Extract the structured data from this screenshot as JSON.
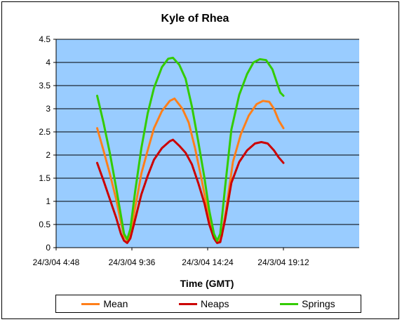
{
  "chart_data": {
    "type": "line",
    "title": "Kyle of Rhea",
    "xlabel": "Time (GMT)",
    "ylabel": "",
    "ylim": [
      0,
      4.5
    ],
    "yticks": [
      "0",
      "0.5",
      "1",
      "1.5",
      "2",
      "2.5",
      "3",
      "3.5",
      "4",
      "4.5"
    ],
    "xlim_hours": [
      4.8,
      24.0
    ],
    "xticks": [
      {
        "label": "24/3/04 4:48",
        "hour": 4.8
      },
      {
        "label": "24/3/04 9:36",
        "hour": 9.6
      },
      {
        "label": "24/3/04 14:24",
        "hour": 14.4
      },
      {
        "label": "24/3/04 19:12",
        "hour": 19.2
      }
    ],
    "plot_background": "#99ccff",
    "grid": "horizontal",
    "legend_position": "bottom",
    "series": [
      {
        "name": "Mean",
        "color": "#ff7f1a",
        "points": [
          [
            7.4,
            2.58
          ],
          [
            7.8,
            2.1
          ],
          [
            8.2,
            1.6
          ],
          [
            8.6,
            1.05
          ],
          [
            8.9,
            0.55
          ],
          [
            9.1,
            0.25
          ],
          [
            9.3,
            0.15
          ],
          [
            9.5,
            0.28
          ],
          [
            9.8,
            0.85
          ],
          [
            10.2,
            1.6
          ],
          [
            10.6,
            2.1
          ],
          [
            11.0,
            2.58
          ],
          [
            11.5,
            2.95
          ],
          [
            12.0,
            3.17
          ],
          [
            12.3,
            3.22
          ],
          [
            12.8,
            3.0
          ],
          [
            13.2,
            2.7
          ],
          [
            13.6,
            2.15
          ],
          [
            14.0,
            1.5
          ],
          [
            14.4,
            0.8
          ],
          [
            14.7,
            0.35
          ],
          [
            14.9,
            0.18
          ],
          [
            15.1,
            0.12
          ],
          [
            15.3,
            0.25
          ],
          [
            15.6,
            0.9
          ],
          [
            16.0,
            1.85
          ],
          [
            16.5,
            2.45
          ],
          [
            17.0,
            2.85
          ],
          [
            17.5,
            3.1
          ],
          [
            17.9,
            3.17
          ],
          [
            18.3,
            3.15
          ],
          [
            18.6,
            3.0
          ],
          [
            18.9,
            2.75
          ],
          [
            19.2,
            2.58
          ]
        ]
      },
      {
        "name": "Neaps",
        "color": "#cc0000",
        "points": [
          [
            7.4,
            1.83
          ],
          [
            7.8,
            1.45
          ],
          [
            8.2,
            1.05
          ],
          [
            8.6,
            0.65
          ],
          [
            8.9,
            0.3
          ],
          [
            9.1,
            0.15
          ],
          [
            9.3,
            0.1
          ],
          [
            9.5,
            0.2
          ],
          [
            9.8,
            0.6
          ],
          [
            10.2,
            1.15
          ],
          [
            10.6,
            1.55
          ],
          [
            11.0,
            1.9
          ],
          [
            11.5,
            2.15
          ],
          [
            12.0,
            2.3
          ],
          [
            12.2,
            2.33
          ],
          [
            12.6,
            2.2
          ],
          [
            13.0,
            2.05
          ],
          [
            13.4,
            1.8
          ],
          [
            13.8,
            1.4
          ],
          [
            14.2,
            0.95
          ],
          [
            14.5,
            0.5
          ],
          [
            14.8,
            0.2
          ],
          [
            15.0,
            0.1
          ],
          [
            15.2,
            0.12
          ],
          [
            15.5,
            0.6
          ],
          [
            15.9,
            1.4
          ],
          [
            16.4,
            1.85
          ],
          [
            16.9,
            2.1
          ],
          [
            17.4,
            2.25
          ],
          [
            17.8,
            2.28
          ],
          [
            18.2,
            2.25
          ],
          [
            18.6,
            2.1
          ],
          [
            18.9,
            1.95
          ],
          [
            19.2,
            1.83
          ]
        ]
      },
      {
        "name": "Springs",
        "color": "#33cc00",
        "points": [
          [
            7.4,
            3.28
          ],
          [
            7.8,
            2.7
          ],
          [
            8.2,
            2.05
          ],
          [
            8.6,
            1.3
          ],
          [
            8.9,
            0.7
          ],
          [
            9.1,
            0.3
          ],
          [
            9.3,
            0.18
          ],
          [
            9.5,
            0.4
          ],
          [
            9.8,
            1.2
          ],
          [
            10.2,
            2.15
          ],
          [
            10.6,
            2.9
          ],
          [
            11.0,
            3.45
          ],
          [
            11.5,
            3.9
          ],
          [
            11.9,
            4.08
          ],
          [
            12.2,
            4.1
          ],
          [
            12.6,
            3.95
          ],
          [
            13.0,
            3.65
          ],
          [
            13.4,
            3.05
          ],
          [
            13.8,
            2.3
          ],
          [
            14.2,
            1.5
          ],
          [
            14.5,
            0.8
          ],
          [
            14.8,
            0.3
          ],
          [
            15.0,
            0.15
          ],
          [
            15.2,
            0.3
          ],
          [
            15.5,
            1.3
          ],
          [
            15.9,
            2.55
          ],
          [
            16.4,
            3.3
          ],
          [
            16.9,
            3.75
          ],
          [
            17.3,
            4.0
          ],
          [
            17.7,
            4.07
          ],
          [
            18.1,
            4.05
          ],
          [
            18.5,
            3.85
          ],
          [
            18.8,
            3.55
          ],
          [
            19.0,
            3.35
          ],
          [
            19.2,
            3.28
          ]
        ]
      }
    ]
  }
}
